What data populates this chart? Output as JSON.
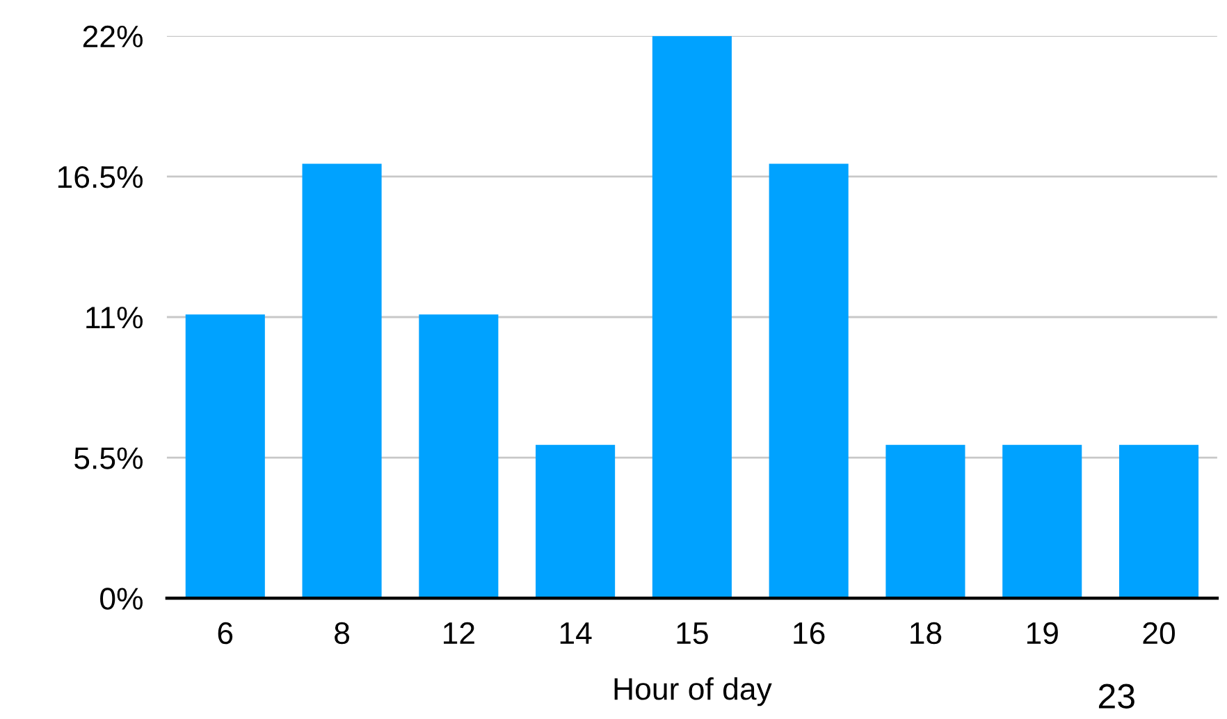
{
  "chart_data": {
    "type": "bar",
    "xlabel": "Hour of day",
    "categories": [
      "6",
      "8",
      "12",
      "14",
      "15",
      "16",
      "18",
      "19",
      "20"
    ],
    "values": [
      11.1,
      17,
      11.1,
      6,
      22,
      17,
      6,
      6,
      6
    ],
    "color": "#00a2ff",
    "ylim": [
      0,
      22
    ],
    "yticks": [
      {
        "value": 0,
        "label": "0%"
      },
      {
        "value": 5.5,
        "label": "5.5%"
      },
      {
        "value": 11,
        "label": "11%"
      },
      {
        "value": 16.5,
        "label": "16.5%"
      },
      {
        "value": 22,
        "label": "22%"
      }
    ],
    "grid": "y",
    "legend": false,
    "annotations": [
      "23"
    ]
  }
}
